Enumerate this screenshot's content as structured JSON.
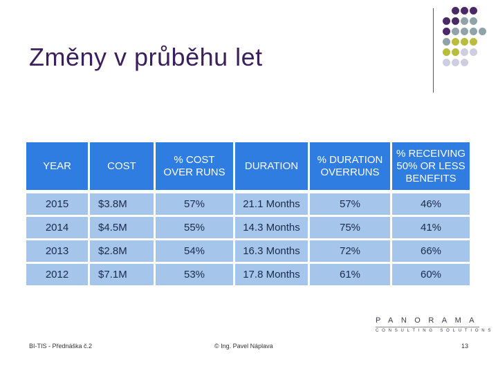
{
  "slide": {
    "title": "Změny v průběhu let"
  },
  "table": {
    "headers": [
      "YEAR",
      "COST",
      "% COST OVER RUNS",
      "DURATION",
      "% DURATION OVERRUNS",
      "% RECEIVING 50% OR LESS BENEFITS"
    ],
    "rows": [
      [
        "2015",
        "$3.8M",
        "57%",
        "21.1 Months",
        "57%",
        "46%"
      ],
      [
        "2014",
        "$4.5M",
        "55%",
        "14.3 Months",
        "75%",
        "41%"
      ],
      [
        "2013",
        "$2.8M",
        "54%",
        "16.3 Months",
        "72%",
        "66%"
      ],
      [
        "2012",
        "$7.1M",
        "53%",
        "17.8 Months",
        "61%",
        "60%"
      ]
    ]
  },
  "logo": {
    "name": "PANORAMA",
    "tagline": "CONSULTING SOLUTIONS"
  },
  "footer": {
    "left": "BI-TIS - Přednáška č.2",
    "center": "© Ing. Pavel Náplava",
    "page": "13"
  },
  "colors": {
    "title": "#3a1f5c",
    "header_bg": "#2f7de1",
    "row_bg": "#a6c5eb",
    "dot_purple": "#4a2a66",
    "dot_teal": "#8fa3a8",
    "dot_olive": "#b9bd3a",
    "dot_lavender": "#cfcde0"
  }
}
